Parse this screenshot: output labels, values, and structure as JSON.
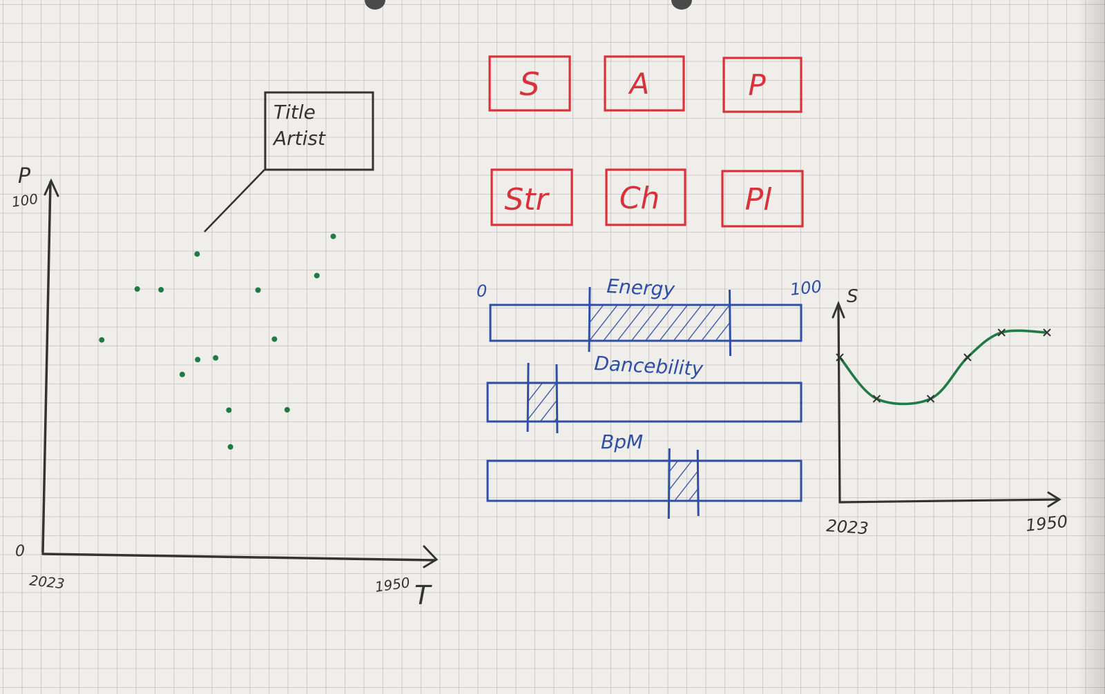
{
  "colors": {
    "ink": "#333333",
    "green": "#1f7a45",
    "red": "#d8333b",
    "blue": "#2f4ea5"
  },
  "scatter": {
    "y_axis_label": "P",
    "y_max_label": "100",
    "y_min_label": "0",
    "x_start_label": "2023",
    "x_end_label": "1950",
    "x_axis_label": "T",
    "tooltip": {
      "line1": "Title",
      "line2": "Artist"
    }
  },
  "buttons": [
    {
      "key": "s",
      "label": "S"
    },
    {
      "key": "a",
      "label": "A"
    },
    {
      "key": "p",
      "label": "P"
    },
    {
      "key": "str",
      "label": "Str"
    },
    {
      "key": "ch",
      "label": "Ch"
    },
    {
      "key": "pl",
      "label": "Pl"
    }
  ],
  "sliders": {
    "min_label": "0",
    "max_label": "100",
    "energy": {
      "label": "Energy",
      "range": [
        32,
        77
      ]
    },
    "danceability": {
      "label": "Dancebility",
      "range": [
        13,
        22
      ]
    },
    "bpm": {
      "label": "BpM",
      "range": [
        58,
        67
      ]
    }
  },
  "line_chart": {
    "y_axis_label": "S",
    "x_start_label": "2023",
    "x_end_label": "1950"
  },
  "chart_data": [
    {
      "type": "scatter",
      "xlabel": "T",
      "ylabel": "P",
      "xlim": [
        2023,
        1950
      ],
      "ylim": [
        0,
        100
      ],
      "x": [
        2012.4,
        2005.7,
        1997.2,
        2001.2,
        1994.4,
        1994.3,
        1990.9,
        1988.4,
        1988.1,
        1982.9,
        1979.8,
        1977.4,
        1971.8,
        1968.7
      ],
      "y": [
        61.2,
        75.6,
        51.4,
        75.4,
        85.5,
        55.6,
        56.1,
        41.3,
        30.9,
        75.3,
        61.4,
        41.4,
        79.4,
        90.5
      ]
    },
    {
      "type": "line",
      "ylabel": "S",
      "xlim": [
        2023,
        1950
      ],
      "x": [
        2023,
        2010,
        1991,
        1978,
        1966,
        1950
      ],
      "y": [
        70,
        50,
        50,
        70,
        82,
        82
      ]
    }
  ]
}
